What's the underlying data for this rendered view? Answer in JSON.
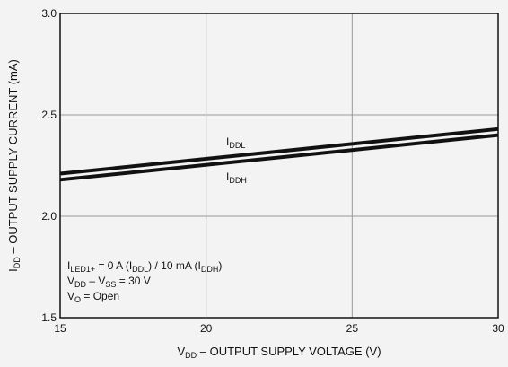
{
  "chart_data": {
    "type": "line",
    "xlabel": {
      "main": "V",
      "sub": "DD",
      "rest": " – OUTPUT SUPPLY VOLTAGE (V)"
    },
    "ylabel": {
      "main": "I",
      "sub": "DD",
      "rest": " – OUTPUT SUPPLY CURRENT (mA)"
    },
    "xlim": [
      15,
      30
    ],
    "ylim": [
      1.5,
      3.0
    ],
    "xticks": [
      "15",
      "20",
      "25",
      "30"
    ],
    "yticks": [
      "1.5",
      "2.0",
      "2.5",
      "3.0"
    ],
    "grid": true,
    "series": [
      {
        "name": {
          "main": "I",
          "sub": "DDL"
        },
        "x": [
          15,
          30
        ],
        "y": [
          2.21,
          2.43
        ]
      },
      {
        "name": {
          "main": "I",
          "sub": "DDH"
        },
        "x": [
          15,
          30
        ],
        "y": [
          2.18,
          2.4
        ]
      }
    ],
    "conditions": [
      [
        {
          "t": "I"
        },
        {
          "t": "LED1+",
          "sub": true
        },
        {
          "t": " = 0 A (I"
        },
        {
          "t": "DDL",
          "sub": true
        },
        {
          "t": ") / 10 mA (I"
        },
        {
          "t": "DDH",
          "sub": true
        },
        {
          "t": ")"
        }
      ],
      [
        {
          "t": "V"
        },
        {
          "t": "DD",
          "sub": true
        },
        {
          "t": " – V"
        },
        {
          "t": "SS",
          "sub": true
        },
        {
          "t": " = 30 V"
        }
      ],
      [
        {
          "t": "V"
        },
        {
          "t": "O",
          "sub": true
        },
        {
          "t": " = Open"
        }
      ]
    ]
  }
}
